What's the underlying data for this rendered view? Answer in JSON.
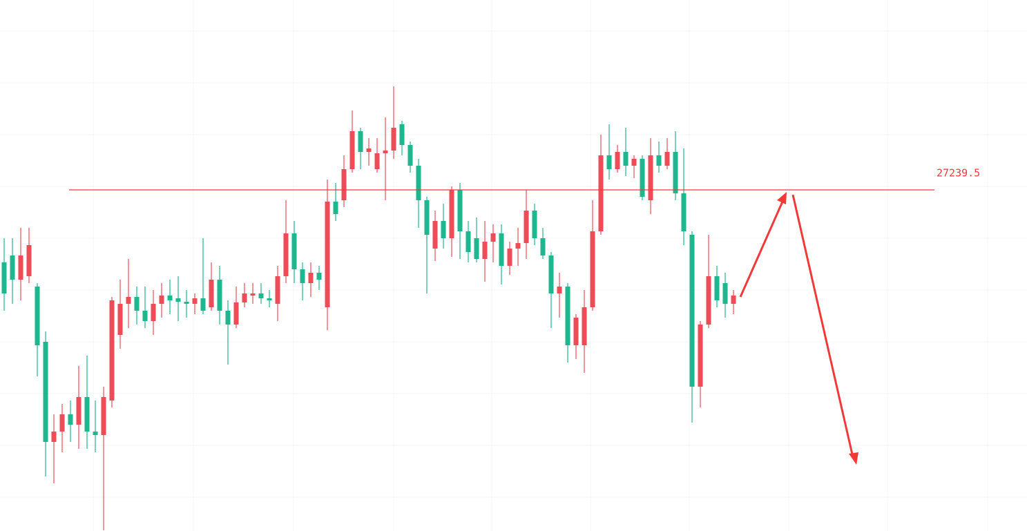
{
  "chart_data": {
    "type": "candlestick",
    "level": 27239.5,
    "ylim": [
      26251.5,
      27789.5
    ],
    "up_color": "#ef4b56",
    "down_color": "#1db68f",
    "open": [
      27029.5,
      27049.5,
      26979.5,
      26989.5,
      26959.5,
      26799.5,
      26509.5,
      26539.5,
      26589.5,
      26559.5,
      26639.5,
      26539.5,
      26529.5,
      26629.5,
      26819.5,
      26909.5,
      26929.5,
      26889.5,
      26859.5,
      26909.5,
      26933.5,
      26925.5,
      26915.5,
      26909.5,
      26925.5,
      26899.5,
      26979.5,
      26889.5,
      26849.5,
      26913.5,
      26933.5,
      26939.5,
      26925.5,
      26909.5,
      26989.5,
      27113.5,
      27009.5,
      26969.5,
      26999.5,
      26899.5,
      27205.5,
      27209.5,
      27299.5,
      27409.5,
      27349.5,
      27299.5,
      27345.5,
      27353.5,
      27429.5,
      27369.5,
      27309.5,
      27209.5,
      27069.5,
      27149.5,
      27099.5,
      27239.5,
      27119.5,
      27099.5,
      27039.5,
      27089.5,
      27113.5,
      27019.5,
      27069.5,
      27085.5,
      27179.5,
      27099.5,
      27049.5,
      26939.5,
      26959.5,
      26789.5,
      26789.5,
      26899.5,
      27119.5,
      27339.5,
      27299.5,
      27349.5,
      27309.5,
      27329.5,
      27209.5,
      27339.5,
      27309.5,
      27349.5,
      27229.5,
      27109.5,
      26669.5,
      26849.5,
      26989.5,
      26969.5,
      26909.5
    ],
    "high": [
      27099.5,
      27099.5,
      27129.5,
      27129.5,
      26969.5,
      26829.5,
      26589.5,
      26619.5,
      26629.5,
      26729.5,
      26759.5,
      26629.5,
      26669.5,
      26929.5,
      26979.5,
      27039.5,
      26959.5,
      26959.5,
      26949.5,
      26969.5,
      26979.5,
      26989.5,
      26949.5,
      26939.5,
      27099.5,
      27029.5,
      27019.5,
      26919.5,
      26959.5,
      26969.5,
      26969.5,
      26969.5,
      26949.5,
      27019.5,
      27209.5,
      27149.5,
      27029.5,
      27029.5,
      27019.5,
      27269.5,
      27259.5,
      27339.5,
      27469.5,
      27419.5,
      27389.5,
      27389.5,
      27449.5,
      27539.5,
      27439.5,
      27379.5,
      27329.5,
      27219.5,
      27179.5,
      27199.5,
      27249.5,
      27259.5,
      27149.5,
      27159.5,
      27149.5,
      27139.5,
      27139.5,
      27089.5,
      27129.5,
      27239.5,
      27199.5,
      27129.5,
      27059.5,
      26999.5,
      26969.5,
      26879.5,
      26949.5,
      27209.5,
      27399.5,
      27429.5,
      27369.5,
      27419.5,
      27339.5,
      27339.5,
      27389.5,
      27379.5,
      27389.5,
      27409.5,
      27359.5,
      27119.5,
      26859.5,
      27109.5,
      27019.5,
      26999.5,
      26949.5
    ],
    "low": [
      26889.5,
      26909.5,
      26919.5,
      26969.5,
      26699.5,
      26409.5,
      26389.5,
      26479.5,
      26509.5,
      26489.5,
      26489.5,
      26479.5,
      26253.5,
      26609.5,
      26779.5,
      26839.5,
      26849.5,
      26839.5,
      26819.5,
      26869.5,
      26879.5,
      26859.5,
      26869.5,
      26879.5,
      26879.5,
      26889.5,
      26849.5,
      26733.5,
      26839.5,
      26899.5,
      26909.5,
      26909.5,
      26899.5,
      26859.5,
      26969.5,
      26969.5,
      26919.5,
      26929.5,
      26949.5,
      26833.5,
      27149.5,
      27189.5,
      27289.5,
      27299.5,
      27309.5,
      27289.5,
      27209.5,
      27329.5,
      27339.5,
      27289.5,
      27129.5,
      26939.5,
      27033.5,
      27069.5,
      27045.5,
      27039.5,
      27029.5,
      27029.5,
      26973.5,
      27029.5,
      26965.5,
      26993.5,
      27019.5,
      27039.5,
      27079.5,
      27039.5,
      26839.5,
      26869.5,
      26739.5,
      26749.5,
      26709.5,
      26889.5,
      27109.5,
      27269.5,
      27289.5,
      27279.5,
      27273.5,
      27209.5,
      27169.5,
      27289.5,
      27299.5,
      27209.5,
      27079.5,
      26565.5,
      26609.5,
      26839.5,
      26899.5,
      26869.5,
      26879.5
    ],
    "close": [
      26939.5,
      26979.5,
      27049.5,
      27079.5,
      26789.5,
      26509.5,
      26539.5,
      26589.5,
      26559.5,
      26639.5,
      26539.5,
      26529.5,
      26639.5,
      26919.5,
      26909.5,
      26929.5,
      26889.5,
      26859.5,
      26909.5,
      26933.5,
      26919.5,
      26915.5,
      26909.5,
      26925.5,
      26889.5,
      26979.5,
      26889.5,
      26849.5,
      26913.5,
      26939.5,
      26939.5,
      26925.5,
      26919.5,
      26989.5,
      27113.5,
      27009.5,
      26969.5,
      26999.5,
      26979.5,
      27205.5,
      27169.5,
      27299.5,
      27409.5,
      27349.5,
      27359.5,
      27345.5,
      27353.5,
      27419.5,
      27369.5,
      27309.5,
      27209.5,
      27109.5,
      27149.5,
      27099.5,
      27239.5,
      27119.5,
      27059.5,
      27039.5,
      27089.5,
      27113.5,
      27019.5,
      27069.5,
      27085.5,
      27179.5,
      27099.5,
      27049.5,
      26939.5,
      26959.5,
      26789.5,
      26869.5,
      26899.5,
      27119.5,
      27339.5,
      27299.5,
      27349.5,
      27309.5,
      27329.5,
      27219.5,
      27339.5,
      27309.5,
      27349.5,
      27229.5,
      27119.5,
      26669.5,
      26849.5,
      26989.5,
      26919.5,
      26909.5,
      26933.5
    ]
  }
}
